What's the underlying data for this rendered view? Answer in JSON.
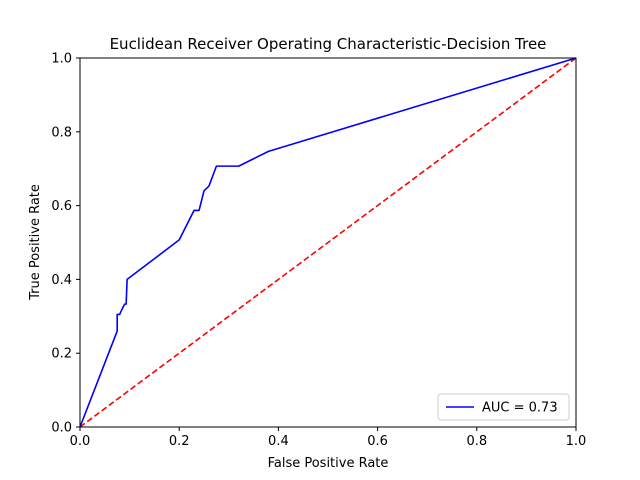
{
  "chart_data": {
    "type": "line",
    "title": "Euclidean Receiver Operating Characteristic-Decision Tree",
    "xlabel": "False Positive Rate",
    "ylabel": "True Positive Rate",
    "xlim": [
      0.0,
      1.0
    ],
    "ylim": [
      0.0,
      1.0
    ],
    "xticks": [
      "0.0",
      "0.2",
      "0.4",
      "0.6",
      "0.8",
      "1.0"
    ],
    "yticks": [
      "0.0",
      "0.2",
      "0.4",
      "0.6",
      "0.8",
      "1.0"
    ],
    "grid": false,
    "legend_position": "lower-right",
    "series": [
      {
        "name": "AUC = 0.73",
        "color": "#0000ff",
        "style": "solid",
        "x": [
          0.0,
          0.075,
          0.075,
          0.08,
          0.085,
          0.09,
          0.093,
          0.095,
          0.2,
          0.23,
          0.24,
          0.25,
          0.26,
          0.275,
          0.32,
          0.38,
          1.0
        ],
        "y": [
          0.0,
          0.26,
          0.305,
          0.305,
          0.32,
          0.333,
          0.333,
          0.4,
          0.507,
          0.587,
          0.587,
          0.64,
          0.653,
          0.707,
          0.707,
          0.747,
          1.0
        ]
      },
      {
        "name": "",
        "color": "#ff0000",
        "style": "dashed",
        "x": [
          0.0,
          1.0
        ],
        "y": [
          0.0,
          1.0
        ]
      }
    ]
  }
}
